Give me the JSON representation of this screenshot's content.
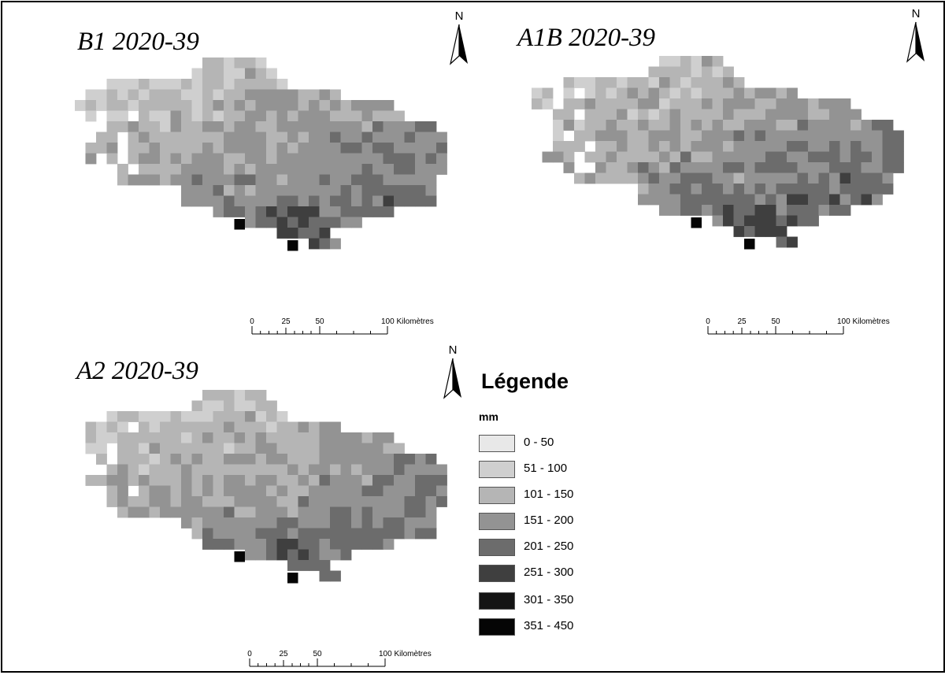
{
  "maps": [
    {
      "id": "b1",
      "title": "B1 2020-39",
      "north_label": "N",
      "scale_labels": [
        "0",
        "25",
        "50",
        "100 Kilomètres"
      ]
    },
    {
      "id": "a1b",
      "title": "A1B 2020-39",
      "north_label": "N",
      "scale_labels": [
        "0",
        "25",
        "50",
        "100 Kilomètres"
      ]
    },
    {
      "id": "a2",
      "title": "A2 2020-39",
      "north_label": "N",
      "scale_labels": [
        "0",
        "25",
        "50",
        "100 Kilomètres"
      ]
    }
  ],
  "legend": {
    "title": "Légende",
    "unit": "mm",
    "classes": [
      {
        "label": "0 - 50",
        "color": "#e8e8e8"
      },
      {
        "label": "51 - 100",
        "color": "#cfcfcf"
      },
      {
        "label": "101 - 150",
        "color": "#b5b5b5"
      },
      {
        "label": "151 - 200",
        "color": "#939393"
      },
      {
        "label": "201 - 250",
        "color": "#6c6c6c"
      },
      {
        "label": "251 - 300",
        "color": "#3f3f3f"
      },
      {
        "label": "301 - 350",
        "color": "#141414"
      },
      {
        "label": "351 - 450",
        "color": "#050505"
      }
    ]
  }
}
